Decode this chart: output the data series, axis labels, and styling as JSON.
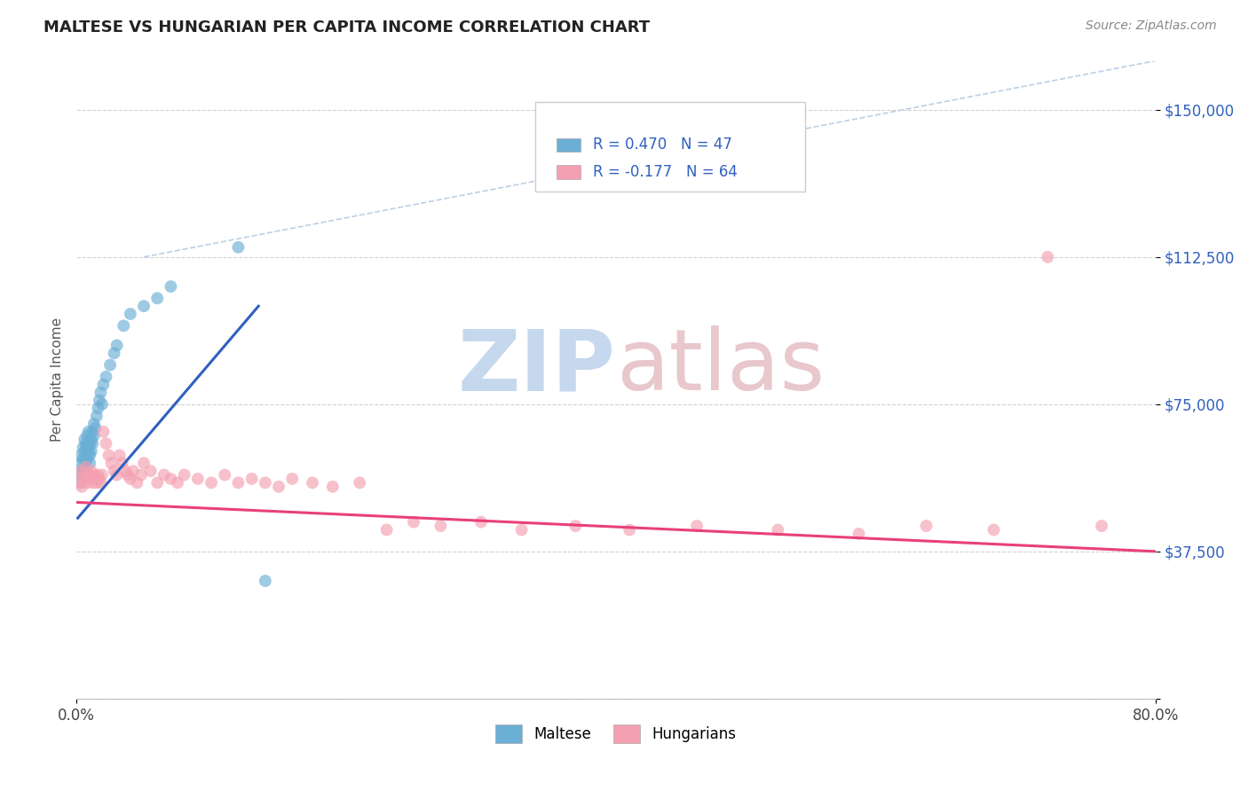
{
  "title": "MALTESE VS HUNGARIAN PER CAPITA INCOME CORRELATION CHART",
  "source_text": "Source: ZipAtlas.com",
  "ylabel": "Per Capita Income",
  "xlim": [
    0.0,
    0.8
  ],
  "ylim": [
    0,
    162500
  ],
  "yticks": [
    0,
    37500,
    75000,
    112500,
    150000
  ],
  "ytick_labels": [
    "",
    "$37,500",
    "$75,000",
    "$112,500",
    "$150,000"
  ],
  "xtick_labels": [
    "0.0%",
    "80.0%"
  ],
  "maltese_color": "#6baed6",
  "hungarian_color": "#f4a0b0",
  "background_color": "#ffffff",
  "grid_color": "#cccccc",
  "maltese_scatter": {
    "x": [
      0.002,
      0.003,
      0.003,
      0.004,
      0.004,
      0.005,
      0.005,
      0.005,
      0.006,
      0.006,
      0.006,
      0.007,
      0.007,
      0.007,
      0.008,
      0.008,
      0.008,
      0.009,
      0.009,
      0.009,
      0.01,
      0.01,
      0.01,
      0.011,
      0.011,
      0.012,
      0.012,
      0.013,
      0.013,
      0.014,
      0.015,
      0.016,
      0.017,
      0.018,
      0.019,
      0.02,
      0.022,
      0.025,
      0.028,
      0.03,
      0.035,
      0.04,
      0.05,
      0.06,
      0.07,
      0.12,
      0.14
    ],
    "y": [
      58000,
      62000,
      55000,
      60000,
      57000,
      64000,
      61000,
      58000,
      63000,
      66000,
      59000,
      65000,
      62000,
      60000,
      67000,
      64000,
      61000,
      65000,
      68000,
      63000,
      62000,
      65000,
      60000,
      66000,
      63000,
      68000,
      65000,
      70000,
      67000,
      69000,
      72000,
      74000,
      76000,
      78000,
      75000,
      80000,
      82000,
      85000,
      88000,
      90000,
      95000,
      98000,
      100000,
      102000,
      105000,
      115000,
      30000
    ]
  },
  "hungarian_scatter": {
    "x": [
      0.002,
      0.003,
      0.004,
      0.005,
      0.006,
      0.007,
      0.008,
      0.009,
      0.01,
      0.011,
      0.012,
      0.013,
      0.014,
      0.015,
      0.016,
      0.017,
      0.018,
      0.019,
      0.02,
      0.022,
      0.024,
      0.026,
      0.028,
      0.03,
      0.032,
      0.034,
      0.036,
      0.038,
      0.04,
      0.042,
      0.045,
      0.048,
      0.05,
      0.055,
      0.06,
      0.065,
      0.07,
      0.075,
      0.08,
      0.09,
      0.1,
      0.11,
      0.12,
      0.13,
      0.14,
      0.15,
      0.16,
      0.175,
      0.19,
      0.21,
      0.23,
      0.25,
      0.27,
      0.3,
      0.33,
      0.37,
      0.41,
      0.46,
      0.52,
      0.58,
      0.63,
      0.68,
      0.72,
      0.76
    ],
    "y": [
      55000,
      58000,
      54000,
      57000,
      56000,
      59000,
      55000,
      57000,
      56000,
      58000,
      55000,
      57000,
      56000,
      55000,
      57000,
      56000,
      55000,
      57000,
      68000,
      65000,
      62000,
      60000,
      58000,
      57000,
      62000,
      60000,
      58000,
      57000,
      56000,
      58000,
      55000,
      57000,
      60000,
      58000,
      55000,
      57000,
      56000,
      55000,
      57000,
      56000,
      55000,
      57000,
      55000,
      56000,
      55000,
      54000,
      56000,
      55000,
      54000,
      55000,
      43000,
      45000,
      44000,
      45000,
      43000,
      44000,
      43000,
      44000,
      43000,
      42000,
      44000,
      43000,
      112500,
      44000
    ]
  },
  "maltese_trend": {
    "x": [
      0.001,
      0.135
    ],
    "y": [
      46000,
      100000
    ]
  },
  "hungarian_trend": {
    "x": [
      0.001,
      0.8
    ],
    "y": [
      50000,
      37500
    ]
  },
  "diagonal_line": {
    "x": [
      0.05,
      0.8
    ],
    "y": [
      112500,
      162500
    ]
  }
}
